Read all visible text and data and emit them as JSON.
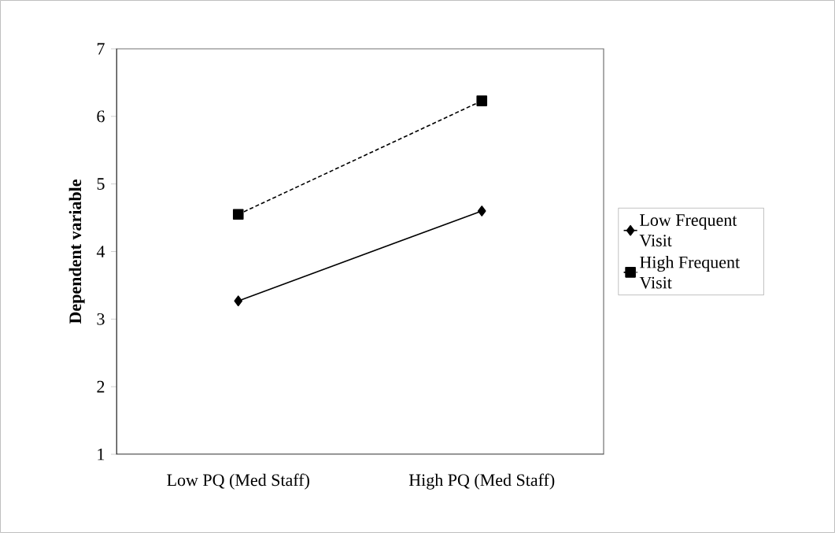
{
  "chart_data": {
    "type": "line",
    "ylabel": "Dependent variable",
    "categories": [
      "Low PQ (Med Staff)",
      "High PQ (Med Staff)"
    ],
    "series": [
      {
        "name": "Low Frequent Visit",
        "color": "#000000",
        "marker": "diamond",
        "line_style": "solid",
        "values": [
          3.27,
          4.6
        ]
      },
      {
        "name": "High Frequent Visit",
        "color": "#000000",
        "marker": "square",
        "line_style": "dashed",
        "values": [
          4.55,
          6.23
        ]
      }
    ],
    "ylim": [
      1,
      7
    ],
    "yticks": [
      1,
      2,
      3,
      4,
      5,
      6,
      7
    ],
    "grid": false,
    "legend": "right"
  }
}
